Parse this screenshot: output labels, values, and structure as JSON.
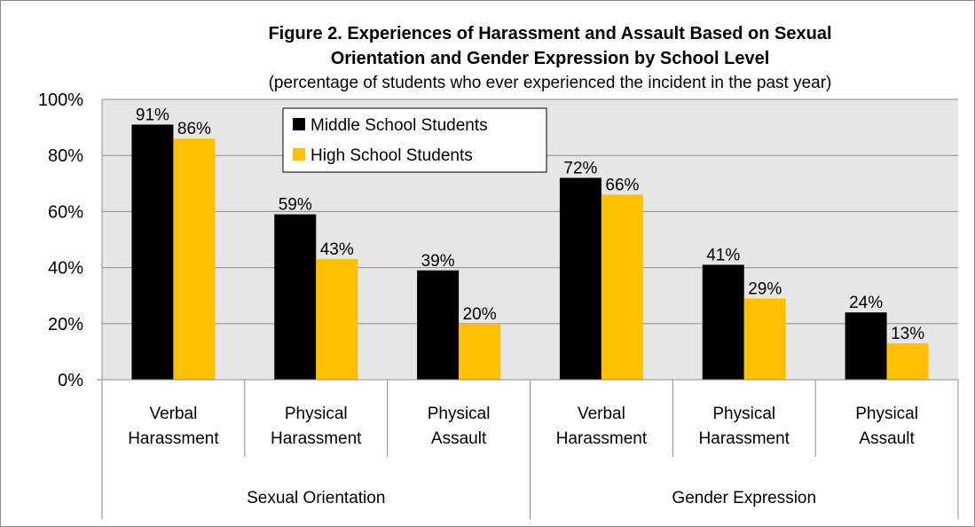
{
  "colors": {
    "middle_school": "#000000",
    "high_school": "#FFC000",
    "plot_background": "#E6E6E6",
    "gridline": "#8C8C8C"
  },
  "chart_data": {
    "type": "bar",
    "title_line1": "Figure 2. Experiences of Harassment and Assault Based on Sexual",
    "title_line2": "Orientation and Gender Expression by School Level",
    "subtitle": "(percentage of students who ever experienced the incident in the past year)",
    "xlabel": "",
    "ylabel": "",
    "ylim": [
      0,
      100
    ],
    "y_ticks": [
      0,
      20,
      40,
      60,
      80,
      100
    ],
    "y_tick_labels": [
      "0%",
      "20%",
      "40%",
      "60%",
      "80%",
      "100%"
    ],
    "grid": true,
    "legend_position": "top-left",
    "categories": [
      {
        "line1": "Verbal",
        "line2": "Harassment"
      },
      {
        "line1": "Physical",
        "line2": "Harassment"
      },
      {
        "line1": "Physical",
        "line2": "Assault"
      },
      {
        "line1": "Verbal",
        "line2": "Harassment"
      },
      {
        "line1": "Physical",
        "line2": "Harassment"
      },
      {
        "line1": "Physical",
        "line2": "Assault"
      }
    ],
    "groups": [
      {
        "label": "Sexual Orientation",
        "span": 3
      },
      {
        "label": "Gender Expression",
        "span": 3
      }
    ],
    "series": [
      {
        "name": "Middle School Students",
        "values": [
          91,
          59,
          39,
          72,
          41,
          24
        ],
        "labels": [
          "91%",
          "59%",
          "39%",
          "72%",
          "41%",
          "24%"
        ]
      },
      {
        "name": "High School Students",
        "values": [
          86,
          43,
          20,
          66,
          29,
          13
        ],
        "labels": [
          "86%",
          "43%",
          "20%",
          "66%",
          "29%",
          "13%"
        ]
      }
    ]
  }
}
